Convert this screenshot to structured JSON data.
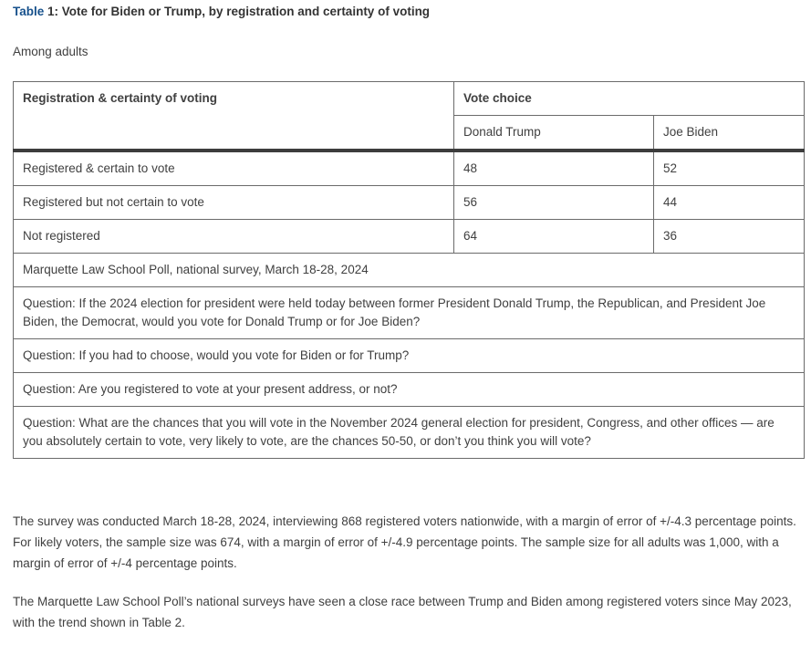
{
  "title": {
    "prefix": "Table",
    "rest": " 1: Vote for Biden or Trump, by registration and certainty of voting"
  },
  "subtitle": "Among adults",
  "table": {
    "col1_header": "Registration & certainty of voting",
    "group_header": "Vote choice",
    "columns": [
      "Donald Trump",
      "Joe Biden"
    ],
    "rows": [
      {
        "label": "Registered & certain to vote",
        "trump": "48",
        "biden": "52"
      },
      {
        "label": "Registered but not certain to vote",
        "trump": "56",
        "biden": "44"
      },
      {
        "label": "Not registered",
        "trump": "64",
        "biden": "36"
      }
    ],
    "notes": [
      "Marquette Law School Poll, national survey, March 18-28, 2024",
      "Question: If the 2024 election for president were held today between former President Donald Trump, the Republican, and President Joe Biden, the Democrat, would you vote for Donald Trump or for Joe Biden?",
      "Question: If you had to choose, would you vote for Biden or for Trump?",
      "Question: Are you registered to vote at your present address, or not?",
      "Question: What are the chances that you will vote in the November 2024 general election for president, Congress, and other offices — are you absolutely certain to vote, very likely to vote, are the chances 50-50, or don’t you think you will vote?"
    ]
  },
  "paragraphs": [
    "The survey was conducted March 18-28, 2024, interviewing 868 registered voters nationwide, with a margin of error of +/-4.3 percentage points. For likely voters, the sample size was 674, with a margin of error of +/-4.9 percentage points. The sample size for all adults was 1,000, with a margin of error of +/-4 percentage points.",
    "The Marquette Law School Poll’s national surveys have seen a close race between Trump and Biden among registered voters since May 2023, with the trend shown in Table 2."
  ],
  "colors": {
    "heading_accent_blue": "#17518c",
    "body_text": "#404040",
    "table_border": "#6b6b6b",
    "table_header_rule": "#3d3d3d"
  }
}
